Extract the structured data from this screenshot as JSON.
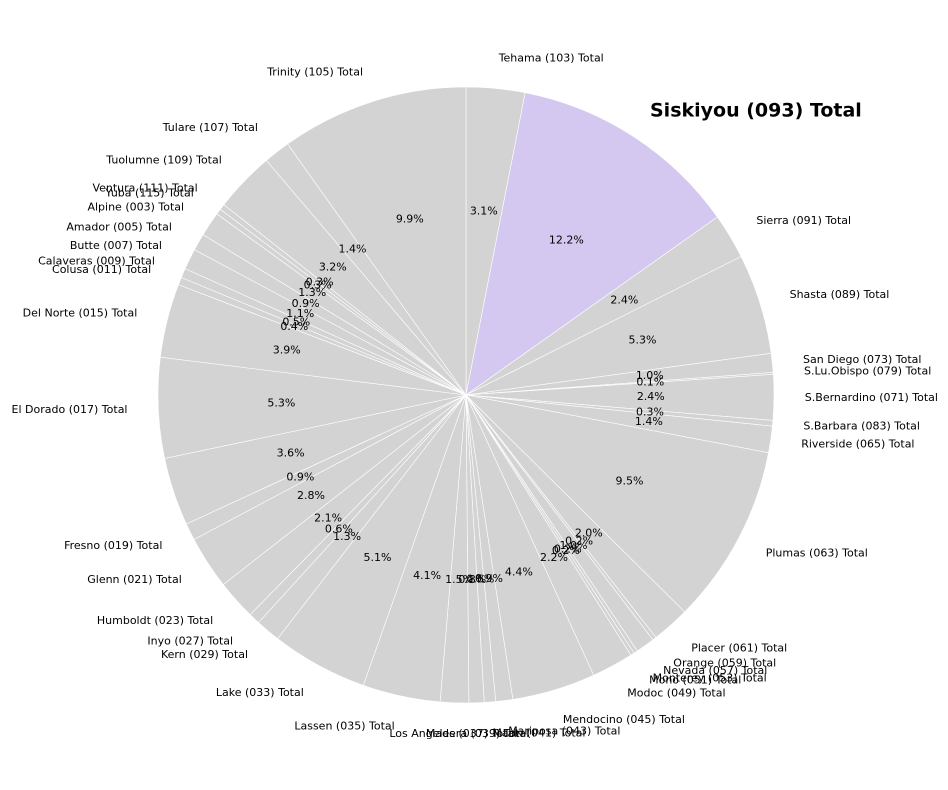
{
  "chart_data": {
    "type": "pie",
    "title": "",
    "start_angle_deg": 90,
    "direction": "clockwise",
    "base_color": "#d3d3d3",
    "highlight_color": "#d4c8f0",
    "edge_color": "#ffffff",
    "highlight": "Siskiyou (093) Total",
    "slices": [
      {
        "label": "Tehama (103) Total",
        "pct": "3.1%",
        "value": 3.1
      },
      {
        "label": "Siskiyou (093) Total",
        "pct": "12.2%",
        "value": 12.2
      },
      {
        "label": "Sierra (091) Total",
        "pct": "2.4%",
        "value": 2.4
      },
      {
        "label": "Shasta (089) Total",
        "pct": "5.3%",
        "value": 5.3
      },
      {
        "label": "San Diego (073) Total",
        "pct": "1.0%",
        "value": 1.0
      },
      {
        "label": "S.Lu.Obispo (079) Total",
        "pct": "0.1%",
        "value": 0.1
      },
      {
        "label": "S.Bernardino (071) Total",
        "pct": "2.4%",
        "value": 2.4
      },
      {
        "label": "S.Barbara (083) Total",
        "pct": "0.3%",
        "value": 0.3
      },
      {
        "label": "Riverside (065) Total",
        "pct": "1.4%",
        "value": 1.4
      },
      {
        "label": "Plumas (063) Total",
        "pct": "9.5%",
        "value": 9.5
      },
      {
        "label": "Placer (061) Total",
        "pct": "2.0%",
        "value": 2.0
      },
      {
        "label": "Orange (059) Total",
        "pct": "0.2%",
        "value": 0.2
      },
      {
        "label": "Nevada (057) Total",
        "pct": "1.0%",
        "value": 1.0
      },
      {
        "label": "Monterey (053) Total",
        "pct": "0.2%",
        "value": 0.2
      },
      {
        "label": "Mono (051) Total",
        "pct": "0.2%",
        "value": 0.2
      },
      {
        "label": "Modoc (049) Total",
        "pct": "2.2%",
        "value": 2.2
      },
      {
        "label": "Mendocino (045) Total",
        "pct": "4.4%",
        "value": 4.4
      },
      {
        "label": "Mariposa (043) Total",
        "pct": "0.9%",
        "value": 0.9
      },
      {
        "label": "Marin (041) Total",
        "pct": "0.6%",
        "value": 0.6
      },
      {
        "label": "Madera (039) Total",
        "pct": "0.8%",
        "value": 0.8
      },
      {
        "label": "Los Angeles (037) Total",
        "pct": "1.5%",
        "value": 1.5
      },
      {
        "label": "Lassen (035) Total",
        "pct": "4.1%",
        "value": 4.1
      },
      {
        "label": "Lake (033) Total",
        "pct": "5.1%",
        "value": 5.1
      },
      {
        "label": "Kern (029) Total",
        "pct": "1.3%",
        "value": 1.3
      },
      {
        "label": "Inyo (027) Total",
        "pct": "0.6%",
        "value": 0.6
      },
      {
        "label": "Humboldt (023) Total",
        "pct": "2.1%",
        "value": 2.1
      },
      {
        "label": "Glenn (021) Total",
        "pct": "2.8%",
        "value": 2.8
      },
      {
        "label": "Fresno (019) Total",
        "pct": "0.9%",
        "value": 0.9
      },
      {
        "label": "",
        "pct": "3.6%",
        "value": 3.6
      },
      {
        "label": "El Dorado (017) Total",
        "pct": "5.3%",
        "value": 5.3
      },
      {
        "label": "Del Norte (015) Total",
        "pct": "3.9%",
        "value": 3.9
      },
      {
        "label": "Colusa (011) Total",
        "pct": "0.4%",
        "value": 0.4
      },
      {
        "label": "Calaveras (009) Total",
        "pct": "0.5%",
        "value": 0.5
      },
      {
        "label": "Butte (007) Total",
        "pct": "1.1%",
        "value": 1.1
      },
      {
        "label": "Amador (005) Total",
        "pct": "0.9%",
        "value": 0.9
      },
      {
        "label": "Alpine (003) Total",
        "pct": "1.3%",
        "value": 1.3
      },
      {
        "label": "Yuba (115) Total",
        "pct": "0.3%",
        "value": 0.3
      },
      {
        "label": "Ventura (111) Total",
        "pct": "0.3%",
        "value": 0.3
      },
      {
        "label": "Tuolumne (109) Total",
        "pct": "3.2%",
        "value": 3.2
      },
      {
        "label": "Tulare (107) Total",
        "pct": "1.4%",
        "value": 1.4
      },
      {
        "label": "Trinity (105) Total",
        "pct": "9.9%",
        "value": 9.9
      }
    ]
  }
}
